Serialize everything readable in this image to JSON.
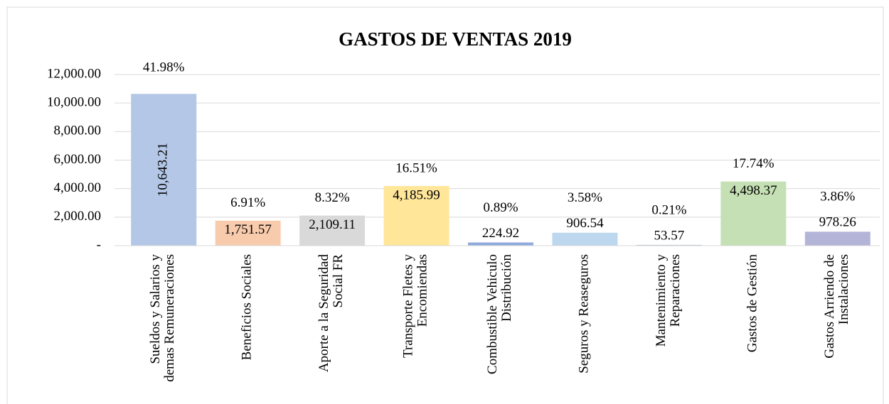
{
  "chart_data": {
    "type": "bar",
    "title": "GASTOS DE VENTAS 2019",
    "categories": [
      "Sueldos y Salarios y demas Remuneraciones",
      "Beneficios Sociales",
      "Aporte a la Seguridad Social FR",
      "Transporte Fletes y Encomiendas",
      "Combustible Vehiculo Distribución",
      "Seguros y Reaseguros",
      "Mantenimiento y Reparaciones",
      "Gastos de Gestión",
      "Gastos Arriendo de Instalaciones"
    ],
    "values": [
      10643.21,
      1751.57,
      2109.11,
      4185.99,
      224.92,
      906.54,
      53.57,
      4498.37,
      978.26
    ],
    "value_labels": [
      "10,643.21",
      "1,751.57",
      "2,109.11",
      "4,185.99",
      "224.92",
      "906.54",
      "53.57",
      "4,498.37",
      "978.26"
    ],
    "share_labels": [
      "41.98%",
      "6.91%",
      "8.32%",
      "16.51%",
      "0.89%",
      "3.58%",
      "0.21%",
      "17.74%",
      "3.86%"
    ],
    "colors": [
      "#b4c7e7",
      "#f8cbad",
      "#d9d9d9",
      "#ffe699",
      "#8faadc",
      "#bdd7ee",
      "#adb9ca",
      "#c5e0b4",
      "#b4b4d8"
    ],
    "ylim": [
      0,
      12000
    ],
    "yticks": [
      {
        "value": 0,
        "label": "-"
      },
      {
        "value": 2000,
        "label": "2,000.00"
      },
      {
        "value": 4000,
        "label": "4,000.00"
      },
      {
        "value": 6000,
        "label": "6,000.00"
      },
      {
        "value": 8000,
        "label": "8,000.00"
      },
      {
        "value": 10000,
        "label": "10,000.00"
      },
      {
        "value": 12000,
        "label": "12,000.00"
      }
    ],
    "grid": true
  }
}
